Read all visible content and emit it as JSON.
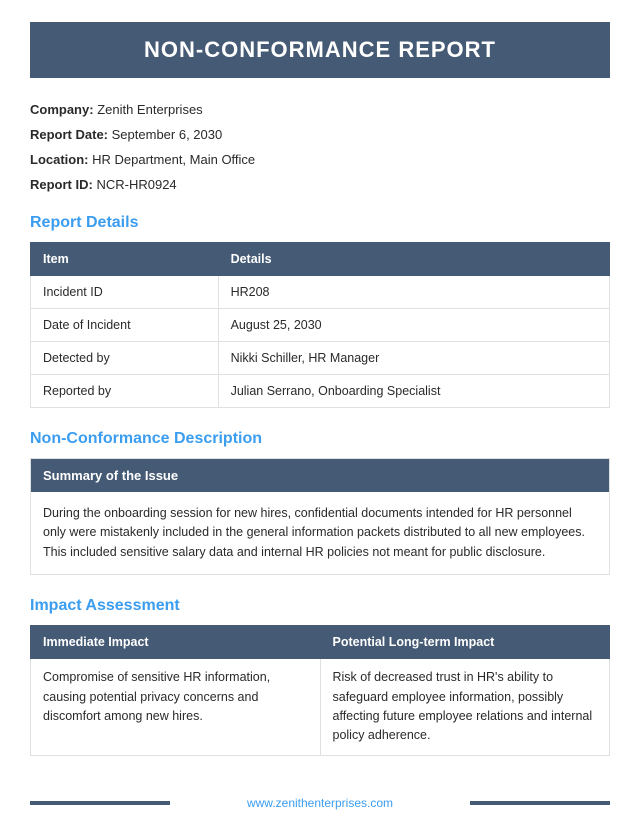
{
  "title": "NON-CONFORMANCE REPORT",
  "meta": {
    "company_label": "Company:",
    "company_value": "Zenith Enterprises",
    "report_date_label": "Report Date:",
    "report_date_value": "September 6, 2030",
    "location_label": "Location:",
    "location_value": "HR Department, Main Office",
    "report_id_label": "Report ID:",
    "report_id_value": "NCR-HR0924"
  },
  "details": {
    "heading": "Report Details",
    "col1": "Item",
    "col2": "Details",
    "rows": [
      {
        "item": "Incident ID",
        "detail": "HR208"
      },
      {
        "item": "Date of Incident",
        "detail": "August 25, 2030"
      },
      {
        "item": "Detected by",
        "detail": "Nikki Schiller, HR Manager"
      },
      {
        "item": "Reported by",
        "detail": "Julian Serrano, Onboarding Specialist"
      }
    ]
  },
  "description": {
    "heading": "Non-Conformance Description",
    "sub_heading": "Summary of the Issue",
    "body": "During the onboarding session for new hires, confidential documents intended for HR personnel only were mistakenly included in the general information packets distributed to all new employees. This included sensitive salary data and internal HR policies not meant for public disclosure."
  },
  "impact": {
    "heading": "Impact Assessment",
    "col1": "Immediate Impact",
    "col2": "Potential Long-term Impact",
    "immediate": "Compromise of sensitive HR information, causing potential privacy concerns and discomfort among new hires.",
    "longterm": "Risk of decreased trust in HR's ability to safeguard employee information, possibly affecting future employee relations and internal policy adherence."
  },
  "footer": {
    "url": "www.zenithenterprises.com"
  },
  "colors": {
    "banner_bg": "#455a74",
    "accent_blue": "#3b9df0",
    "border": "#e0e0e0",
    "text": "#2a2a2a"
  }
}
